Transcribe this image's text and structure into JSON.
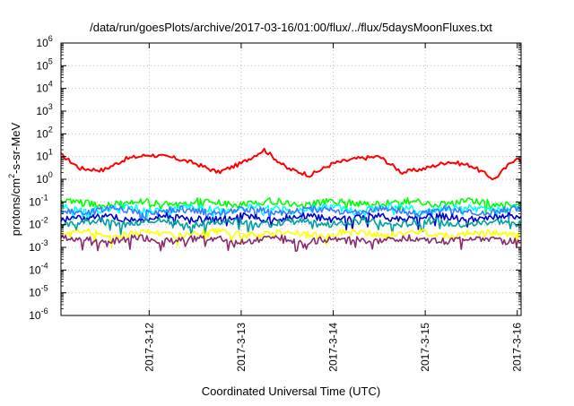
{
  "chart_data": {
    "type": "line",
    "title": "/data/run/goesPlots/archive/2017-03-16/01:00/flux/../flux/5daysMoonFluxes.txt",
    "xlabel": "Coordinated Universal Time (UTC)",
    "ylabel": "protons/cm²-s-sr-MeV",
    "ylabel_parts": {
      "pre": "protons/cm",
      "sup": "2",
      "post": "-s-sr-MeV"
    },
    "yscale": "log",
    "ylim_exponents": [
      -6,
      6
    ],
    "y_ticks": [
      {
        "base": "10",
        "exp": "6"
      },
      {
        "base": "10",
        "exp": "5"
      },
      {
        "base": "10",
        "exp": "4"
      },
      {
        "base": "10",
        "exp": "3"
      },
      {
        "base": "10",
        "exp": "2"
      },
      {
        "base": "10",
        "exp": "1"
      },
      {
        "base": "10",
        "exp": "0"
      },
      {
        "base": "10",
        "exp": "-1"
      },
      {
        "base": "10",
        "exp": "-2"
      },
      {
        "base": "10",
        "exp": "-3"
      },
      {
        "base": "10",
        "exp": "-4"
      },
      {
        "base": "10",
        "exp": "-5"
      },
      {
        "base": "10",
        "exp": "-6"
      }
    ],
    "xlim": [
      "2017-03-11 01:00",
      "2017-03-16 01:00"
    ],
    "x_ticks": [
      "2017-3-12",
      "2017-3-13",
      "2017-3-14",
      "2017-3-15",
      "2017-3-16"
    ],
    "grid": true,
    "series": [
      {
        "color": "#ff0000",
        "x": [
          "2017-03-11 01:00",
          "2017-03-11 06:00",
          "2017-03-11 12:00",
          "2017-03-11 18:00",
          "2017-03-12 00:00",
          "2017-03-12 06:00",
          "2017-03-12 12:00",
          "2017-03-12 18:00",
          "2017-03-13 00:00",
          "2017-03-13 06:00",
          "2017-03-13 12:00",
          "2017-03-13 18:00",
          "2017-03-14 00:00",
          "2017-03-14 06:00",
          "2017-03-14 12:00",
          "2017-03-14 18:00",
          "2017-03-15 00:00",
          "2017-03-15 06:00",
          "2017-03-15 12:00",
          "2017-03-15 18:00",
          "2017-03-16 00:00",
          "2017-03-16 01:00"
        ],
        "values": [
          12,
          3,
          2.5,
          8,
          12,
          9,
          5,
          2,
          5,
          20,
          3,
          1.5,
          5,
          8,
          10,
          2,
          3,
          6,
          4,
          1,
          10,
          5
        ]
      },
      {
        "color": "#00ff00",
        "base": 0.09,
        "x_span": [
          "2017-03-11 01:00",
          "2017-03-16 01:00"
        ]
      },
      {
        "color": "#00ffff",
        "base": 0.05,
        "x_span": [
          "2017-03-11 01:00",
          "2017-03-16 01:00"
        ]
      },
      {
        "color": "#3a7bff",
        "base": 0.04,
        "x_span": [
          "2017-03-11 01:00",
          "2017-03-16 01:00"
        ]
      },
      {
        "color": "#0000cc",
        "base": 0.02,
        "x_span": [
          "2017-03-11 01:00",
          "2017-03-16 01:00"
        ]
      },
      {
        "color": "#00a0a0",
        "base": 0.012,
        "x_span": [
          "2017-03-11 01:00",
          "2017-03-16 01:00"
        ]
      },
      {
        "color": "#ffff00",
        "base": 0.004,
        "x_span": [
          "2017-03-11 01:00",
          "2017-03-16 01:00"
        ]
      },
      {
        "color": "#8a2b6e",
        "base": 0.0022,
        "x_span": [
          "2017-03-11 01:00",
          "2017-03-16 01:00"
        ]
      }
    ]
  }
}
